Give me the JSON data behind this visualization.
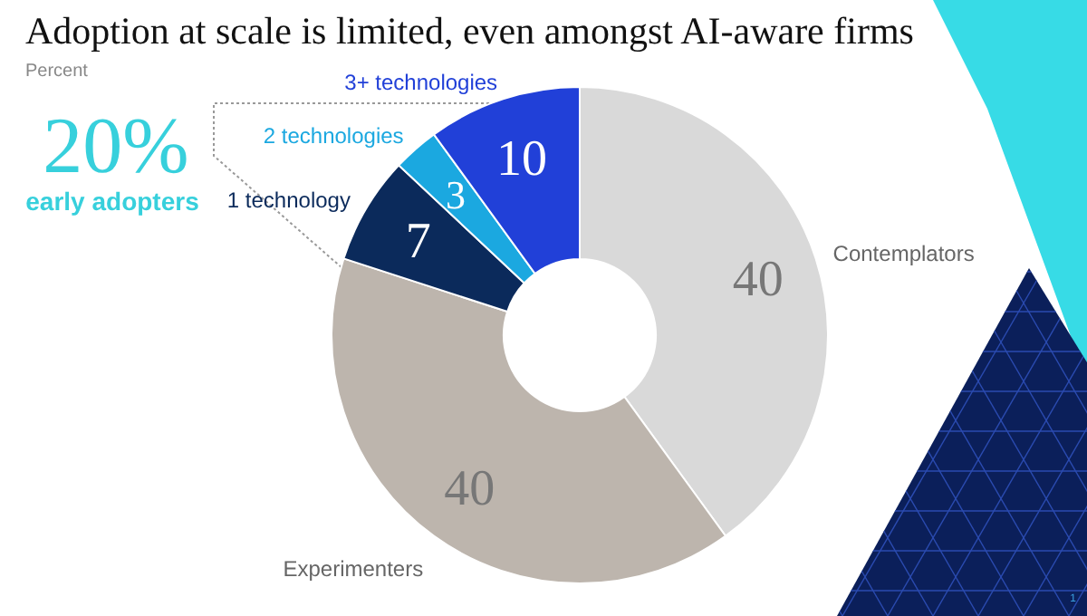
{
  "chart_data": {
    "type": "donut",
    "title": "Adoption at scale is limited, even amongst AI-aware firms",
    "subtitle": "Percent",
    "categories": [
      "Contemplators",
      "Experimenters",
      "1 technology",
      "2 technologies",
      "3+ technologies"
    ],
    "values": [
      40,
      40,
      7,
      3,
      10
    ],
    "colors": [
      "#d9d9d9",
      "#bdb5ad",
      "#0b2a5b",
      "#1ba8e0",
      "#2140d8"
    ],
    "data_labels": true,
    "annotations": [
      "20%",
      "early adopters",
      "1"
    ]
  }
}
